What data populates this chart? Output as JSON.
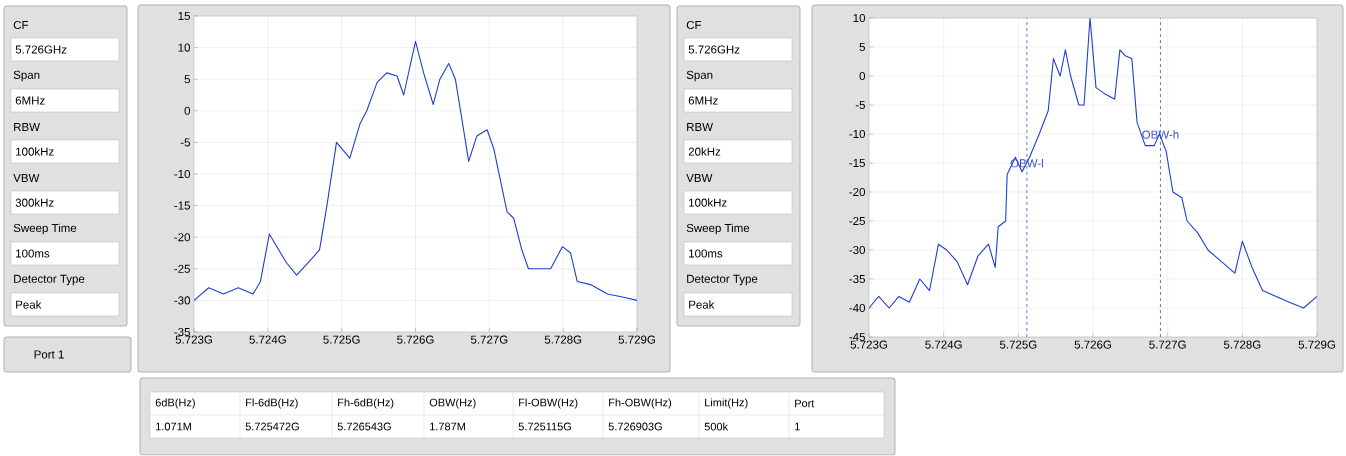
{
  "chart_data": [
    {
      "type": "other",
      "annotations": [
        "CF",
        "5.726GHz",
        "Span",
        "6MHz",
        "RBW",
        "100kHz",
        "VBW",
        "300kHz",
        "Sweep Time",
        "100ms",
        "Detector Type",
        "Peak",
        "Port 1"
      ]
    },
    {
      "type": "line",
      "grid": true,
      "xlim": [
        5.723,
        5.729
      ],
      "ylim": [
        -35,
        15
      ],
      "xticks": [
        {
          "value": 5.723,
          "label": "5.723G"
        },
        {
          "value": 5.724,
          "label": "5.724G"
        },
        {
          "value": 5.725,
          "label": "5.725G"
        },
        {
          "value": 5.726,
          "label": "5.726G"
        },
        {
          "value": 5.727,
          "label": "5.727G"
        },
        {
          "value": 5.728,
          "label": "5.728G"
        },
        {
          "value": 5.729,
          "label": "5.729G"
        }
      ],
      "yticks": [
        -35,
        -30,
        -25,
        -20,
        -15,
        -10,
        -5,
        0,
        5,
        10,
        15
      ],
      "x": [
        5.723,
        5.7232,
        5.7234,
        5.7236,
        5.7238,
        5.7239,
        5.72402,
        5.72425,
        5.72439,
        5.72455,
        5.7247,
        5.7248,
        5.72493,
        5.72511,
        5.72525,
        5.72534,
        5.72548,
        5.72561,
        5.72575,
        5.72584,
        5.726,
        5.72611,
        5.72624,
        5.72633,
        5.72645,
        5.72654,
        5.72661,
        5.72672,
        5.72683,
        5.72697,
        5.72706,
        5.72715,
        5.72724,
        5.72733,
        5.72744,
        5.72753,
        5.72769,
        5.72783,
        5.72799,
        5.7281,
        5.72819,
        5.72837,
        5.7286,
        5.72882,
        5.729
      ],
      "series": [
        {
          "color": "#1f3fd0",
          "values": [
            -30,
            -28,
            -29,
            -28,
            -29,
            -27,
            -19.5,
            -24,
            -26,
            -24,
            -22,
            -15,
            -5,
            -7.5,
            -2,
            0,
            4.5,
            6,
            5.5,
            2.5,
            11,
            6,
            1,
            5,
            7.5,
            5,
            0,
            -8,
            -4,
            -3,
            -6,
            -11,
            -16,
            -17,
            -22,
            -25,
            -25,
            -25,
            -21.5,
            -22.5,
            -27,
            -27.5,
            -29,
            -29.5,
            -30
          ]
        }
      ]
    },
    {
      "type": "other",
      "annotations": [
        "CF",
        "5.726GHz",
        "Span",
        "6MHz",
        "RBW",
        "20kHz",
        "VBW",
        "100kHz",
        "Sweep Time",
        "100ms",
        "Detector Type",
        "Peak"
      ]
    },
    {
      "type": "line",
      "grid": true,
      "xlim": [
        5.723,
        5.729
      ],
      "ylim": [
        -45,
        10
      ],
      "xticks": [
        {
          "value": 5.723,
          "label": "5.723G"
        },
        {
          "value": 5.724,
          "label": "5.724G"
        },
        {
          "value": 5.725,
          "label": "5.725G"
        },
        {
          "value": 5.726,
          "label": "5.726G"
        },
        {
          "value": 5.727,
          "label": "5.727G"
        },
        {
          "value": 5.728,
          "label": "5.728G"
        },
        {
          "value": 5.729,
          "label": "5.729G"
        }
      ],
      "yticks": [
        -45,
        -40,
        -35,
        -30,
        -25,
        -20,
        -15,
        -10,
        -5,
        0,
        5,
        10
      ],
      "x": [
        5.723,
        5.72313,
        5.72327,
        5.7234,
        5.72354,
        5.72368,
        5.72381,
        5.72393,
        5.72404,
        5.72418,
        5.72432,
        5.72446,
        5.7246,
        5.72469,
        5.72473,
        5.72483,
        5.72485,
        5.72496,
        5.72505,
        5.72515,
        5.72528,
        5.7254,
        5.72547,
        5.72556,
        5.72563,
        5.7257,
        5.72581,
        5.72588,
        5.72596,
        5.72604,
        5.72615,
        5.72629,
        5.72636,
        5.72643,
        5.72652,
        5.72659,
        5.7267,
        5.72682,
        5.72689,
        5.72698,
        5.72707,
        5.72719,
        5.72726,
        5.7274,
        5.72754,
        5.72772,
        5.7279,
        5.728,
        5.72813,
        5.72827,
        5.72845,
        5.72863,
        5.72882,
        5.729
      ],
      "series": [
        {
          "color": "#1f3fd0",
          "values": [
            -40,
            -38,
            -40,
            -38,
            -39,
            -35,
            -37,
            -29,
            -30,
            -32,
            -36,
            -31,
            -29,
            -33,
            -26,
            -25,
            -17,
            -14,
            -16.5,
            -14,
            -10,
            -6,
            3,
            0,
            4.5,
            0,
            -5,
            -5,
            10,
            -2,
            -3,
            -4,
            4.5,
            3.5,
            3,
            -8,
            -12,
            -12,
            -10,
            -13,
            -20,
            -21,
            -25,
            -27,
            -30,
            -32,
            -34,
            -28.5,
            -33,
            -37,
            -38,
            -39,
            -40,
            -38
          ]
        }
      ],
      "ref_lines": [
        {
          "axis": "x",
          "value": 5.725115,
          "label": "OBW-l",
          "color": "#3a50c8",
          "line_style": "dashed"
        },
        {
          "axis": "x",
          "value": 5.726903,
          "label": "OBW-h",
          "color": "#3a50c8",
          "line_style": "dashed"
        }
      ]
    },
    {
      "type": "other",
      "annotations": [
        "6dB(Hz)",
        "Fl-6dB(Hz)",
        "Fh-6dB(Hz)",
        "OBW(Hz)",
        "Fl-OBW(Hz)",
        "Fh-OBW(Hz)",
        "Limit(Hz)",
        "Port",
        "1.071M",
        "5.725472G",
        "5.726543G",
        "1.787M",
        "5.725115G",
        "5.726903G",
        "500k",
        "1"
      ]
    }
  ]
}
